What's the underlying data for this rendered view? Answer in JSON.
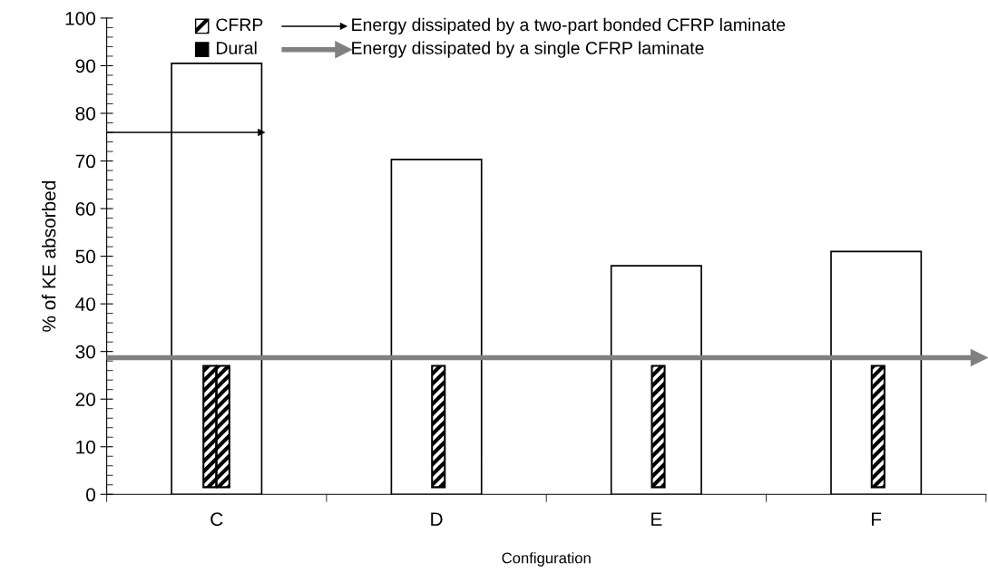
{
  "chart_data": {
    "type": "bar",
    "xlabel": "Configuration",
    "ylabel": "% of KE absorbed",
    "categories": [
      "C",
      "D",
      "E",
      "F"
    ],
    "values": [
      90.5,
      70.3,
      48.0,
      51.0
    ],
    "color": "#ffffff",
    "ylim": [
      0,
      100
    ],
    "yticks": [
      0,
      10,
      20,
      30,
      40,
      50,
      60,
      70,
      80,
      90,
      100
    ],
    "grid": false,
    "ref_lines": [
      {
        "axis": "y",
        "value": 76,
        "label": "Energy dissipated by a two-part bonded CFRP laminate",
        "color": "#000000"
      },
      {
        "axis": "y",
        "value": 28.7,
        "label": "Energy dissipated by a single CFRP laminate",
        "color": "#808080"
      }
    ],
    "annotations": [
      "CFRP",
      "Dural"
    ],
    "legend": "top"
  }
}
